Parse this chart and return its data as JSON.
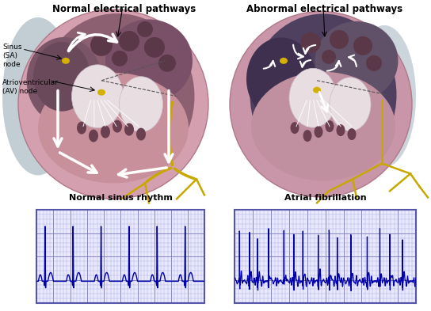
{
  "title_left": "Normal electrical pathways",
  "title_right": "Abnormal electrical pathways",
  "ecg_left_title": "Normal sinus rhythm",
  "ecg_right_title": "Atrial fibrillation",
  "bg_color": "#ffffff",
  "grid_minor_color": "#aaaadd",
  "grid_major_color": "#7777bb",
  "ecg_line_color": "#0000aa",
  "ecg_bg_color": "#e8e8ff",
  "ecg_border_color": "#5555aa",
  "heart_pink": "#d4a0b0",
  "heart_pink2": "#c896a8",
  "heart_dark": "#8c6070",
  "heart_darker": "#6a4858",
  "atrium_dark": "#7a5568",
  "ventricle_pink": "#c8909a",
  "vein_dark": "#5a3848",
  "white_struct": "#e8dde0",
  "yellow_pathway": "#c8a800",
  "right_bg": "#b08090",
  "right_dark_atrium": "#504060",
  "gray_bg": "#9aacb8"
}
